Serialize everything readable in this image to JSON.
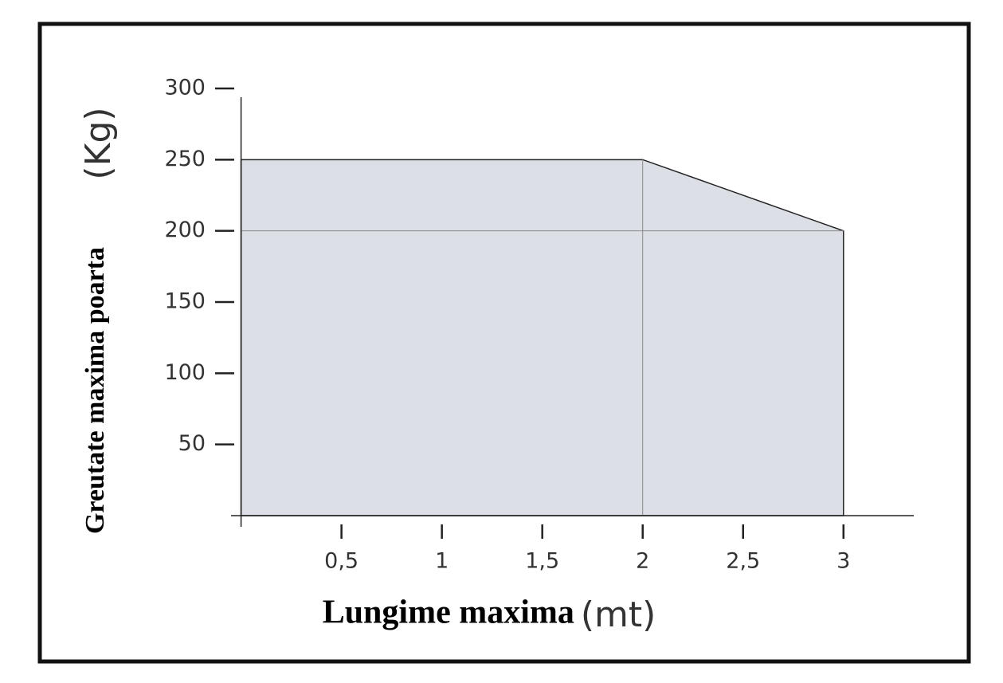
{
  "chart_data": {
    "type": "area",
    "x_label": "Lungime maxima",
    "x_unit": "(mt)",
    "y_label": "Greutate maxima poarta",
    "y_unit": "(Kg)",
    "x": [
      0,
      2,
      3
    ],
    "values": [
      250,
      250,
      200
    ],
    "color": "#dcdfe6",
    "xlim": [
      -0.05,
      3.35
    ],
    "xticks": [
      {
        "value": 0.5,
        "label": "0,5"
      },
      1,
      {
        "value": 1.5,
        "label": "1,5"
      },
      2,
      {
        "value": 2.5,
        "label": "2,5"
      },
      3
    ],
    "ylim": [
      0,
      300
    ],
    "yticks": [
      50,
      100,
      150,
      200,
      250,
      300
    ]
  }
}
